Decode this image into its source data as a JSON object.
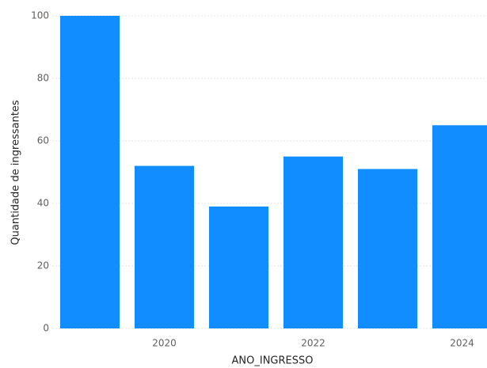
{
  "chart_data": {
    "type": "bar",
    "categories": [
      null,
      "2020",
      null,
      "2022",
      null,
      "2024"
    ],
    "values": [
      100,
      52,
      39,
      55,
      51,
      65
    ],
    "color": "#118dff",
    "x_label": "ANO_INGRESSO",
    "y_label": "Quantidade de ingressantes",
    "ylim": [
      0,
      100
    ],
    "yticks": [
      0,
      20,
      40,
      60,
      80,
      100
    ],
    "grid": true
  }
}
